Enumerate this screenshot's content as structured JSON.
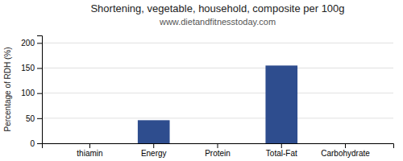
{
  "chart_data": {
    "type": "bar",
    "title": "Shortening, vegetable, household, composite per 100g",
    "subtitle": "www.dietandfitnesstoday.com",
    "categories": [
      "thiamin",
      "Energy",
      "Protein",
      "Total-Fat",
      "Carbohydrate"
    ],
    "values": [
      0,
      46,
      0,
      155,
      0
    ],
    "color": "#2e4d8e",
    "ylabel": "Percentage of RDH (%)",
    "ylim": [
      0,
      215
    ],
    "yticks": [
      0,
      50,
      100,
      150,
      200
    ],
    "grid": true
  }
}
